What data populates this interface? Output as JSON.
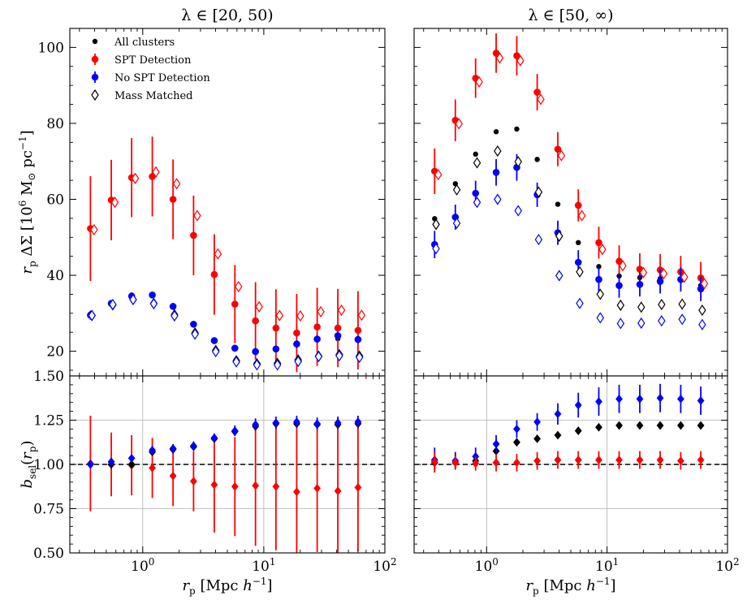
{
  "chart_data": {
    "type": "scatter",
    "x": [
      0.37,
      0.55,
      0.81,
      1.2,
      1.78,
      2.63,
      3.9,
      5.77,
      8.54,
      12.6,
      18.7,
      27.6,
      40.9,
      60.0
    ],
    "panels": [
      {
        "id": "left-top",
        "title": "λ ∈ [20, 50)",
        "ylabel": "r_p ΔΣ [10^6 M⊙ pc^-1]",
        "ylim": [
          13.5,
          105
        ],
        "yticks": [
          20,
          40,
          60,
          80,
          100
        ],
        "series": [
          {
            "name": "All clusters",
            "marker": "circle-small",
            "color": "#000000",
            "values": [
              29.8,
              32.8,
              34.8,
              35.0,
              32.0,
              27.2,
              22.9,
              20.8,
              20.1,
              20.4,
              21.8,
              23.0,
              23.3,
              23.0
            ]
          },
          {
            "name": "SPT Detection",
            "marker": "circle",
            "color": "#ff0000",
            "values": [
              52.3,
              59.8,
              65.7,
              66.0,
              60.0,
              50.5,
              40.2,
              32.4,
              28.0,
              26.1,
              24.8,
              26.4,
              26.1,
              25.5
            ],
            "err": [
              13.8,
              10.6,
              10.4,
              10.5,
              10.5,
              10.5,
              10.6,
              10.3,
              10.2,
              10.2,
              10.3,
              10.3,
              10.3,
              10.3
            ]
          },
          {
            "name": "No SPT Detection",
            "marker": "circle",
            "color": "#0000ff",
            "values": [
              29.5,
              32.6,
              34.5,
              34.8,
              31.8,
              27.1,
              22.8,
              20.8,
              19.9,
              20.6,
              21.9,
              23.2,
              24.1,
              23.1
            ],
            "err": [
              1.2,
              0.9,
              0.9,
              0.9,
              0.9,
              0.9,
              0.9,
              0.9,
              0.9,
              0.9,
              1.0,
              1.0,
              1.0,
              1.0
            ]
          },
          {
            "name": "Mass Matched",
            "marker": "diamond-open",
            "color": "#000000",
            "values": [
              29.4,
              32.2,
              33.6,
              32.6,
              29.6,
              24.8,
              20.2,
              17.5,
              16.7,
              16.8,
              17.7,
              18.7,
              19.1,
              18.7
            ]
          },
          {
            "name": "SPT Detection (mass matched)",
            "marker": "diamond-open",
            "color": "#ff0000",
            "legend": false,
            "values": [
              52.0,
              59.2,
              65.5,
              67.2,
              64.1,
              55.7,
              45.6,
              37.0,
              31.7,
              29.4,
              29.3,
              30.4,
              30.8,
              29.5
            ]
          },
          {
            "name": "No SPT Detection (mass matched)",
            "marker": "diamond-open",
            "color": "#0000ff",
            "legend": false,
            "values": [
              29.4,
              32.3,
              33.6,
              32.5,
              29.3,
              24.5,
              19.9,
              17.2,
              16.4,
              16.4,
              17.3,
              18.6,
              18.8,
              18.4
            ]
          }
        ]
      },
      {
        "id": "right-top",
        "title": "λ ∈ [50, ∞)",
        "ylim": [
          13.5,
          105
        ],
        "series": [
          {
            "name": "All clusters",
            "marker": "circle-small",
            "color": "#000000",
            "values": [
              54.9,
              64.1,
              71.9,
              77.8,
              78.5,
              70.5,
              58.7,
              48.6,
              42.3,
              39.8,
              39.4,
              39.1,
              38.9,
              37.3
            ]
          },
          {
            "name": "SPT Detection",
            "marker": "circle",
            "color": "#ff0000",
            "values": [
              67.4,
              80.8,
              91.9,
              98.5,
              97.8,
              88.2,
              73.2,
              58.4,
              48.6,
              43.7,
              41.6,
              41.4,
              40.9,
              39.3
            ],
            "err": [
              6.0,
              5.5,
              5.2,
              5.2,
              5.2,
              4.8,
              4.5,
              4.2,
              4.2,
              4.2,
              4.2,
              4.2,
              4.2,
              4.2
            ]
          },
          {
            "name": "No SPT Detection",
            "marker": "circle",
            "color": "#0000ff",
            "values": [
              48.1,
              55.3,
              61.6,
              67.1,
              68.4,
              61.2,
              51.2,
              43.4,
              38.9,
              37.3,
              37.6,
              38.4,
              38.9,
              36.4
            ],
            "err": [
              3.6,
              3.3,
              3.3,
              3.5,
              3.5,
              3.2,
              3.2,
              3.2,
              3.2,
              3.2,
              3.2,
              3.2,
              3.2,
              3.2
            ]
          },
          {
            "name": "Mass Matched",
            "marker": "diamond-open",
            "color": "#000000",
            "values": [
              53.4,
              62.5,
              69.6,
              72.7,
              69.9,
              61.9,
              50.3,
              40.9,
              35.0,
              32.1,
              31.6,
              32.3,
              32.4,
              30.8
            ]
          },
          {
            "name": "SPT Detection (mass matched)",
            "marker": "diamond-open",
            "color": "#ff0000",
            "legend": false,
            "values": [
              66.5,
              79.9,
              90.9,
              97.2,
              96.5,
              86.3,
              71.5,
              55.7,
              46.8,
              42.5,
              40.7,
              40.4,
              39.5,
              37.8
            ]
          },
          {
            "name": "No SPT Detection (mass matched)",
            "marker": "diamond-open",
            "color": "#0000ff",
            "legend": false,
            "values": [
              47.0,
              53.7,
              59.2,
              60.0,
              57.0,
              49.4,
              39.9,
              32.6,
              28.8,
              27.3,
              27.4,
              28.0,
              28.4,
              27.0
            ]
          }
        ]
      },
      {
        "id": "left-bottom",
        "xlabel": "r_p [Mpc h^-1]",
        "ylabel": "b_sel(r_p)",
        "ylim": [
          0.5,
          1.5
        ],
        "yticks": [
          0.5,
          0.75,
          1.0,
          1.25,
          1.5
        ],
        "reference_line": 1.0,
        "series": [
          {
            "name": "SPT Detection",
            "marker": "diamond",
            "color": "#ff0000",
            "values": [
              1.005,
              1.0,
              0.995,
              0.98,
              0.935,
              0.905,
              0.885,
              0.875,
              0.88,
              0.875,
              0.845,
              0.865,
              0.85,
              0.87
            ],
            "err": [
              0.27,
              0.18,
              0.17,
              0.17,
              0.17,
              0.17,
              0.27,
              0.28,
              0.34,
              0.36,
              0.36,
              0.36,
              0.36,
              0.36
            ]
          },
          {
            "name": "All clusters",
            "marker": "diamond",
            "color": "#000000",
            "values": [
              1.0,
              1.0,
              1.0,
              1.07,
              1.085,
              1.1,
              1.145,
              1.185,
              1.215,
              1.23,
              1.23,
              1.225,
              1.225,
              1.23
            ]
          },
          {
            "name": "No SPT Detection",
            "marker": "diamond",
            "color": "#0000ff",
            "values": [
              1.0,
              1.015,
              1.035,
              1.08,
              1.09,
              1.105,
              1.15,
              1.19,
              1.225,
              1.235,
              1.24,
              1.23,
              1.235,
              1.24
            ],
            "err": [
              0.025,
              0.02,
              0.02,
              0.025,
              0.025,
              0.025,
              0.025,
              0.03,
              0.035,
              0.035,
              0.035,
              0.035,
              0.035,
              0.035
            ]
          }
        ]
      },
      {
        "id": "right-bottom",
        "xlabel": "r_p [Mpc h^-1]",
        "ylim": [
          0.5,
          1.5
        ],
        "reference_line": 1.0,
        "series": [
          {
            "name": "All clusters",
            "marker": "diamond",
            "color": "#000000",
            "values": [
              1.01,
              1.01,
              1.02,
              1.075,
              1.125,
              1.145,
              1.165,
              1.19,
              1.21,
              1.22,
              1.22,
              1.22,
              1.22,
              1.22
            ]
          },
          {
            "name": "No SPT Detection",
            "marker": "diamond",
            "color": "#0000ff",
            "values": [
              1.025,
              1.02,
              1.045,
              1.115,
              1.2,
              1.24,
              1.285,
              1.335,
              1.355,
              1.37,
              1.37,
              1.375,
              1.37,
              1.36
            ],
            "err": [
              0.07,
              0.05,
              0.05,
              0.05,
              0.05,
              0.05,
              0.06,
              0.07,
              0.08,
              0.08,
              0.08,
              0.08,
              0.08,
              0.08
            ]
          },
          {
            "name": "SPT Detection",
            "marker": "diamond",
            "color": "#ff0000",
            "values": [
              1.015,
              1.01,
              1.005,
              1.01,
              1.01,
              1.02,
              1.025,
              1.025,
              1.025,
              1.025,
              1.025,
              1.025,
              1.02,
              1.025
            ],
            "err": [
              0.06,
              0.04,
              0.04,
              0.05,
              0.05,
              0.05,
              0.05,
              0.05,
              0.05,
              0.05,
              0.05,
              0.05,
              0.05,
              0.05
            ]
          }
        ]
      }
    ],
    "xlim": [
      0.25,
      100
    ],
    "xscale": "log",
    "xticks": [
      {
        "value": 1,
        "label": "10",
        "exp": "0"
      },
      {
        "value": 10,
        "label": "10",
        "exp": "1"
      },
      {
        "value": 100,
        "label": "10",
        "exp": "2"
      }
    ],
    "legend": {
      "location": "upper-left of left-top panel",
      "entries": [
        "All clusters",
        "SPT Detection",
        "No SPT Detection",
        "Mass Matched"
      ]
    }
  }
}
